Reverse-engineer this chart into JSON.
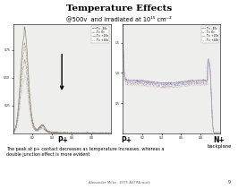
{
  "title": "Temperature Effects",
  "subtitle": "@500v  and irradiated at 10¹⁵ cm⁻²",
  "left_xlabel": "P+",
  "right_xlabel_left": "P+",
  "right_xlabel_right": "N+",
  "right_xlabel_right2": "backplane",
  "caption_line1": "The peak at p+ contact decreases as temperature increases, whereas a",
  "caption_line2": "double junction effect is more evident",
  "footer": "Alexander Milke - EFTF-ASTRA work",
  "page": "9",
  "legend_temps": [
    "T = -20c",
    "T = 0c",
    "T = +20c",
    "T = +40c"
  ],
  "colors_left": [
    "#6b6b8a",
    "#8a6b6b",
    "#9a8a6a",
    "#a0707a"
  ],
  "colors_right": [
    "#7a7aaa",
    "#9a6a9a",
    "#aa8888",
    "#88aa88"
  ],
  "bg_color": "#f0f0ee",
  "plot_bg": "#e8e8e8"
}
